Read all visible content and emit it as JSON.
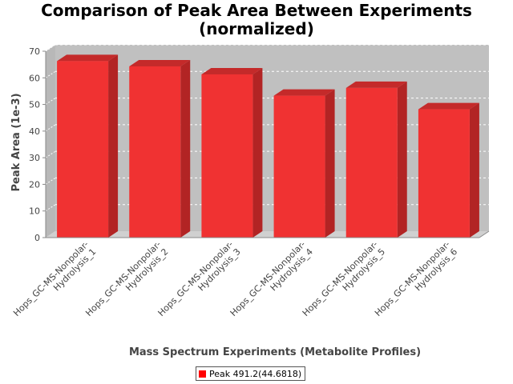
{
  "chart_data": {
    "type": "bar",
    "title_lines": [
      "Comparison of Peak Area Between Experiments",
      "(normalized)"
    ],
    "xlabel": "Mass Spectrum Experiments (Metabolite Profiles)",
    "ylabel": "Peak Area (1e-3)",
    "ylim": [
      0,
      70
    ],
    "yticks": [
      0,
      10,
      20,
      30,
      40,
      50,
      60,
      70
    ],
    "categories": [
      [
        "Hops_GC-MS-Nonpolar-",
        "Hydrolysis_1"
      ],
      [
        "Hops_GC-MS-Nonpolar-",
        "Hydrolysis_2"
      ],
      [
        "Hops_GC-MS-Nonpolar-",
        "Hydrolysis_3"
      ],
      [
        "Hops_GC-MS-Nonpolar-",
        "Hydrolysis_4"
      ],
      [
        "Hops_GC-MS-Nonpolar-",
        "Hydrolysis_5"
      ],
      [
        "Hops_GC-MS-Nonpolar-",
        "Hydrolysis_6"
      ]
    ],
    "series": [
      {
        "name": "Peak 491.2(44.6818)",
        "values": [
          66.3,
          64.3,
          61.3,
          53.3,
          56.2,
          48.2
        ]
      }
    ],
    "colors": {
      "bar_front": "#f03232",
      "bar_top": "#c42a2a",
      "bar_side": "#b22424",
      "plot_back": "#c0c0c0",
      "plot_floor": "#d0d0d0",
      "grid": "#ffffff",
      "legend_swatch": "#ff0000"
    },
    "grid": true,
    "legend_position": "bottom"
  }
}
